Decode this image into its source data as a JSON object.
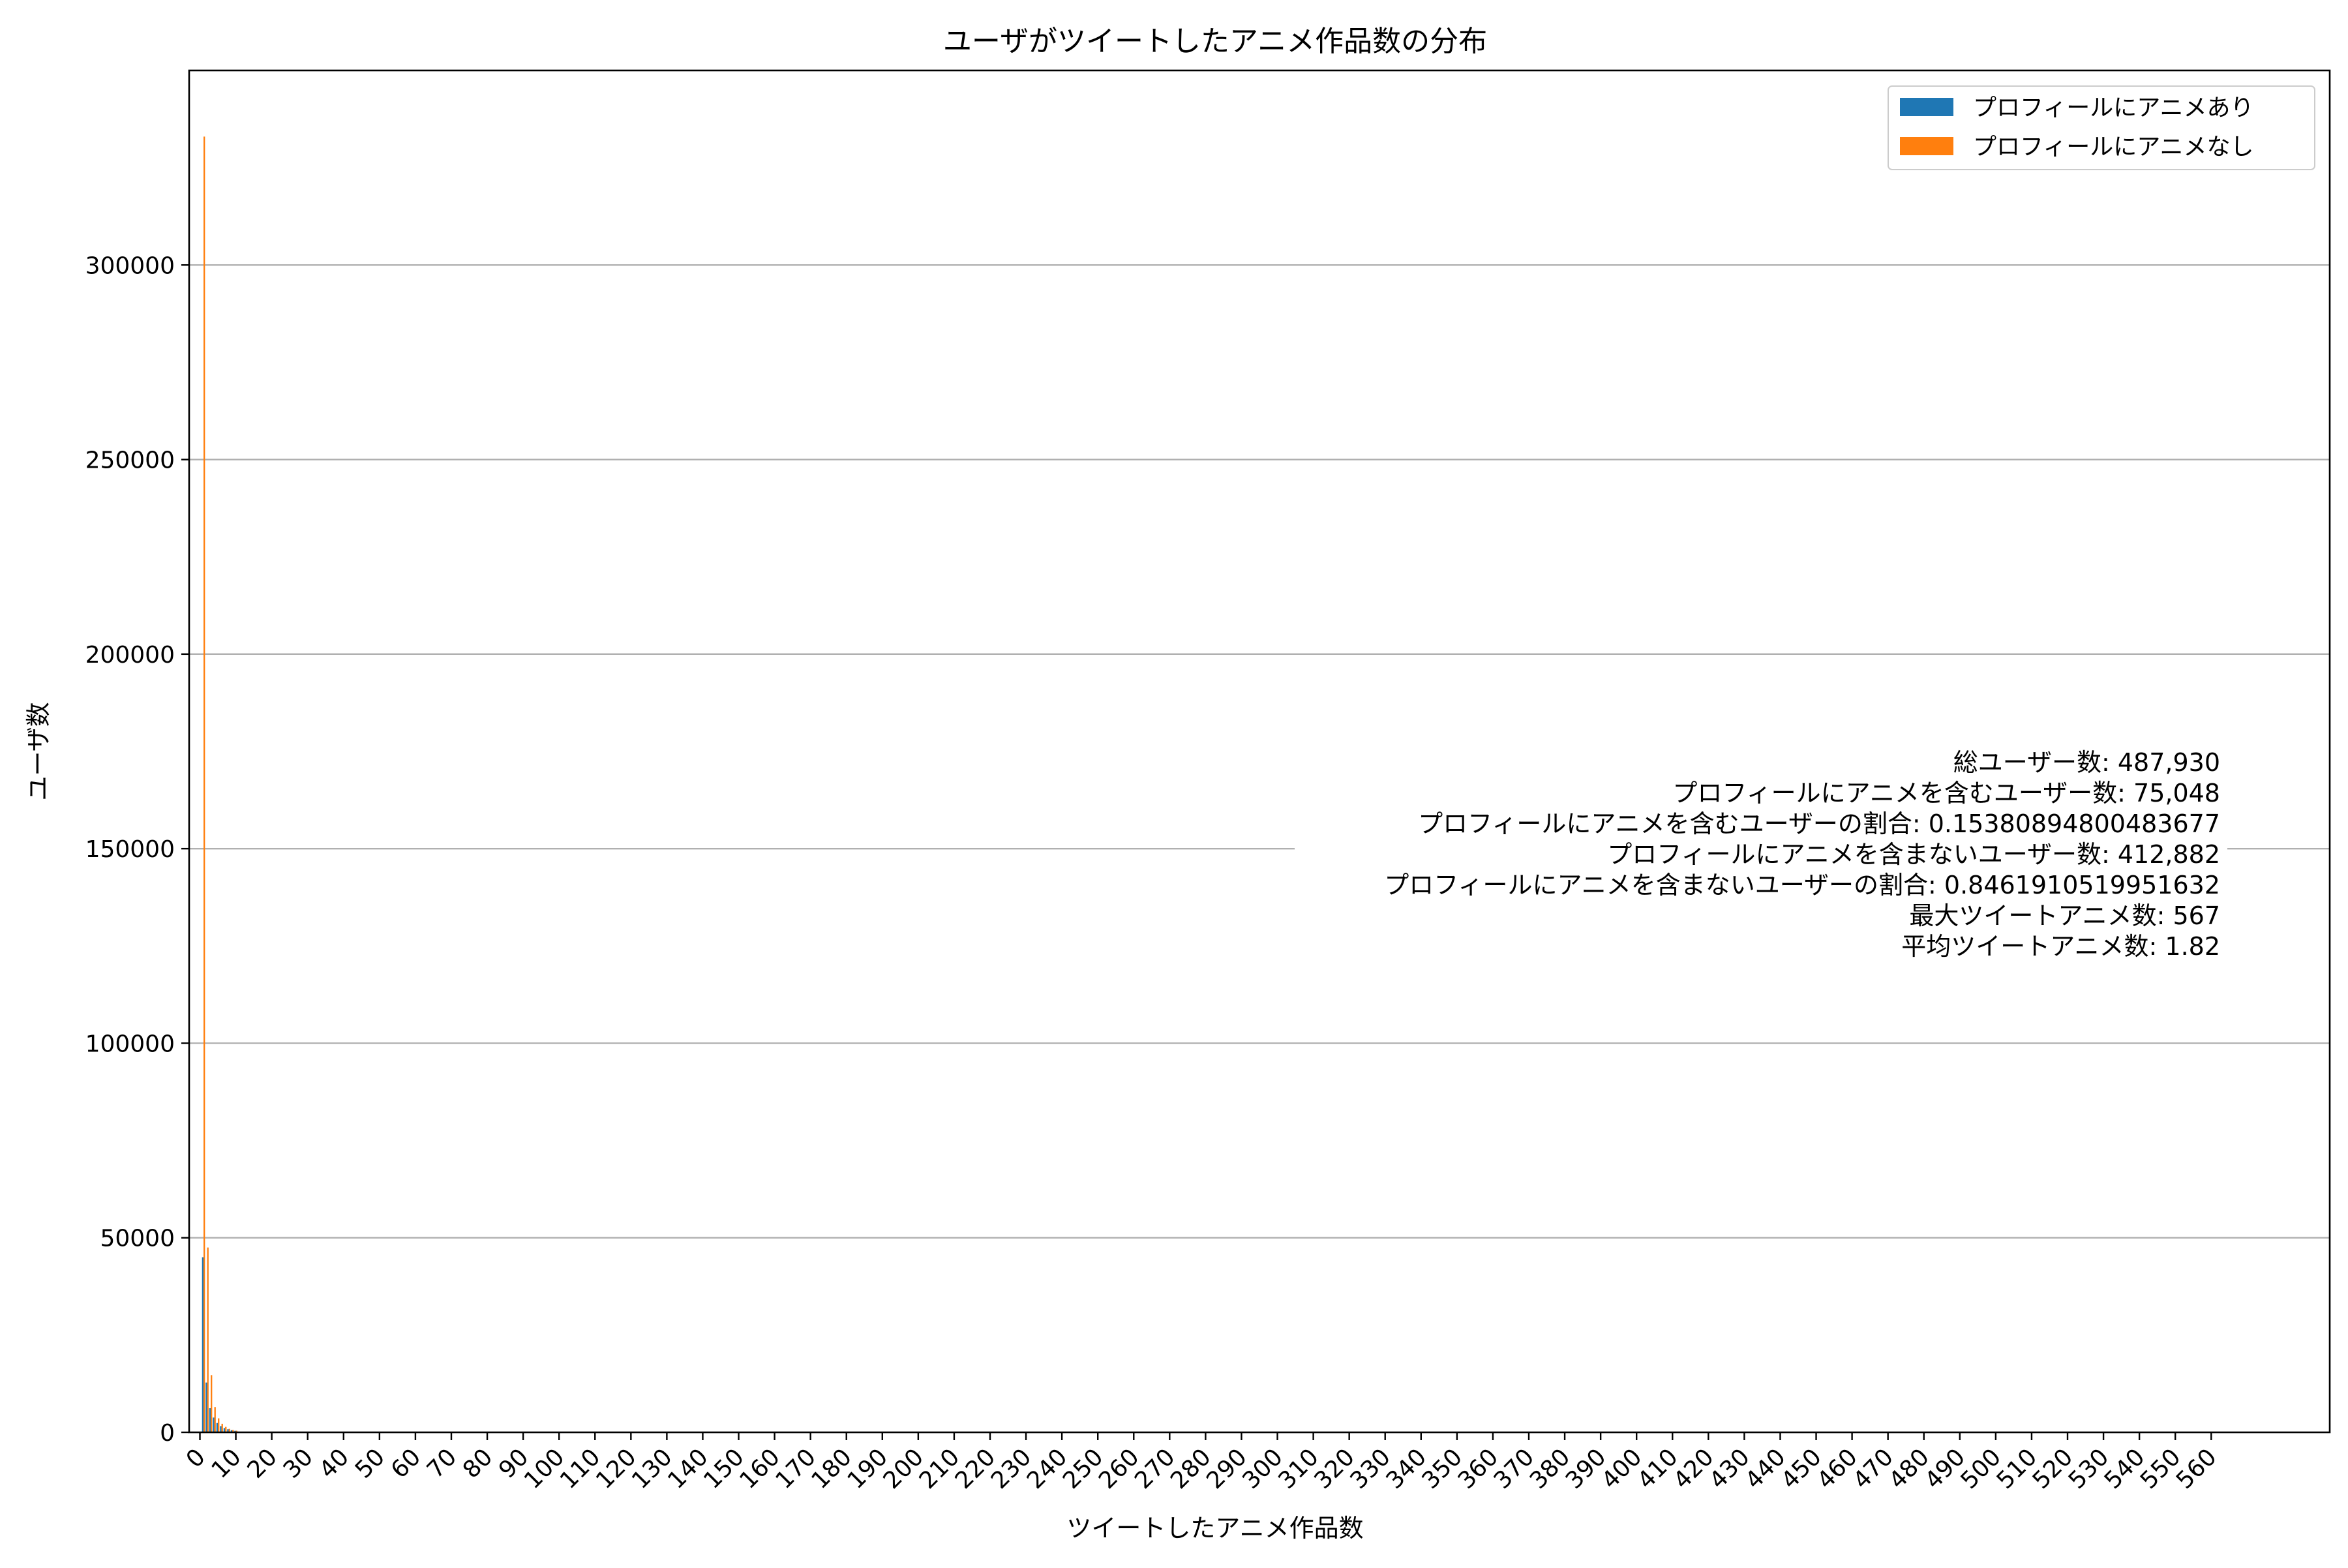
{
  "chart_data": {
    "type": "bar",
    "title": "ユーザがツイートしたアニメ作品数の分布",
    "xlabel": "ツイートしたアニメ作品数",
    "ylabel": "ユーザ数",
    "xlim": [
      -3,
      593
    ],
    "ylim": [
      0,
      350000
    ],
    "grid": {
      "y": true,
      "x": false
    },
    "legend_position": "top-right",
    "xticks": [
      0,
      10,
      20,
      30,
      40,
      50,
      60,
      70,
      80,
      90,
      100,
      110,
      120,
      130,
      140,
      150,
      160,
      170,
      180,
      190,
      200,
      210,
      220,
      230,
      240,
      250,
      260,
      270,
      280,
      290,
      300,
      310,
      320,
      330,
      340,
      350,
      360,
      370,
      380,
      390,
      400,
      410,
      420,
      430,
      440,
      450,
      460,
      470,
      480,
      490,
      500,
      510,
      520,
      530,
      540,
      550,
      560
    ],
    "yticks": [
      0,
      50000,
      100000,
      150000,
      200000,
      250000,
      300000
    ],
    "x": [
      1,
      2,
      3,
      4,
      5,
      6,
      7,
      8,
      9,
      10
    ],
    "series": [
      {
        "name": "プロフィールにアニメあり",
        "color": "#1f77b4",
        "values": [
          45000,
          12800,
          6200,
          3800,
          2400,
          1600,
          1100,
          800,
          550,
          400
        ]
      },
      {
        "name": "プロフィールにアニメなし",
        "color": "#ff7f0e",
        "values": [
          333000,
          47500,
          14700,
          6500,
          3600,
          2200,
          1400,
          900,
          600,
          420
        ]
      }
    ],
    "annotations": [
      "総ユーザー数: 487,930",
      "プロフィールにアニメを含むユーザー数: 75,048",
      "プロフィールにアニメを含むユーザーの割合: 0.15380894800483677",
      "プロフィールにアニメを含まないユーザー数: 412,882",
      "プロフィールにアニメを含まないユーザーの割合: 0.8461910519951632",
      "最大ツイートアニメ数: 567",
      "平均ツイートアニメ数: 1.82"
    ]
  }
}
